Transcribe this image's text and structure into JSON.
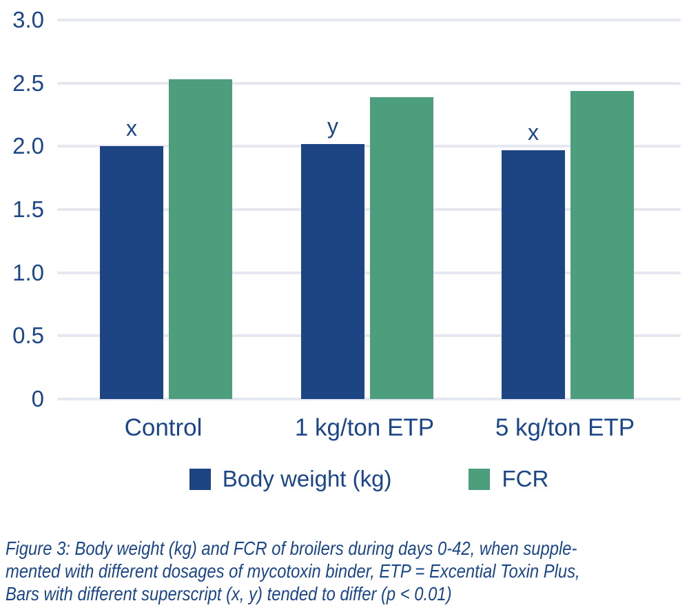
{
  "colors": {
    "body_weight_bar": "#1D4584",
    "fcr_bar": "#4C9E7D",
    "text_blue": "#1A4689",
    "gridline": "#E5E7F1"
  },
  "chart_data": {
    "type": "bar",
    "categories": [
      "Control",
      "1 kg/ton ETP",
      "5 kg/ton ETP"
    ],
    "series": [
      {
        "name": "Body weight (kg)",
        "color": "#1D4584",
        "values": [
          2.0,
          2.02,
          1.97
        ],
        "superscripts": [
          "x",
          "y",
          "x"
        ]
      },
      {
        "name": "FCR",
        "color": "#4C9E7D",
        "values": [
          2.53,
          2.39,
          2.44
        ],
        "superscripts": [
          "",
          "",
          ""
        ]
      }
    ],
    "ylim": [
      0,
      3.0
    ],
    "yticks": [
      "0",
      "0.5",
      "1.0",
      "1.5",
      "2.0",
      "2.5",
      "3.0"
    ],
    "grid": "horizontal",
    "legend_position": "bottom",
    "title": "",
    "xlabel": "",
    "ylabel": ""
  },
  "caption": {
    "lines": [
      "Figure 3: Body weight (kg) and FCR of broilers during days 0-42, when supple-",
      "mented with different dosages of mycotoxin binder, ETP = Excential Toxin Plus,",
      "Bars with different superscript (x, y) tended to differ (p < 0.01)"
    ]
  }
}
